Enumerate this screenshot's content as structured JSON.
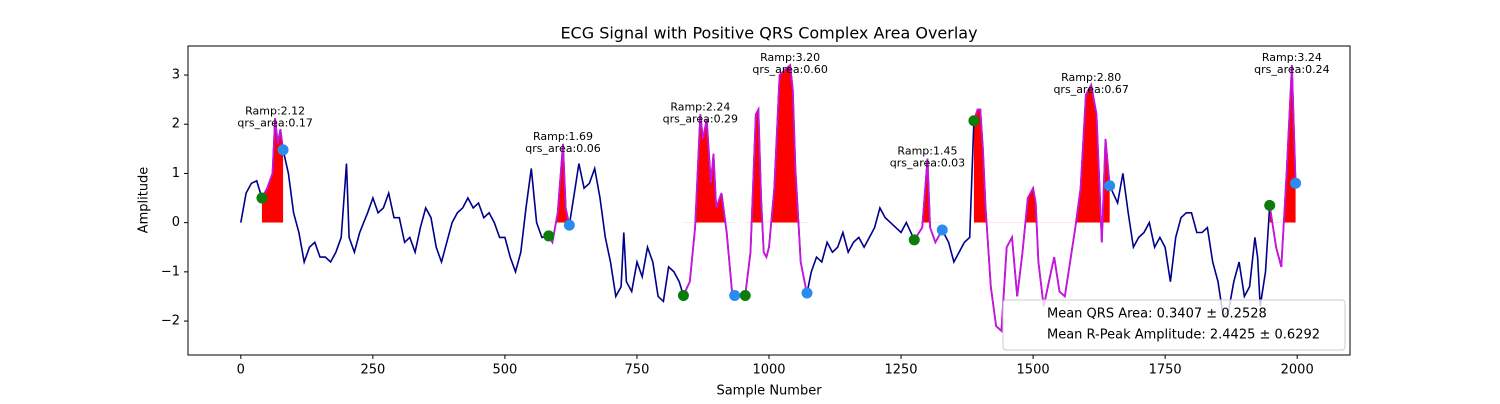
{
  "chart_data": {
    "type": "ecg",
    "title": "ECG Signal with Positive QRS Complex Area Overlay",
    "x_label": "Sample Number",
    "y_label": "Amplitude",
    "xlim": [
      -100,
      2100
    ],
    "ylim": [
      -2.69,
      3.59
    ],
    "xticks": [
      0,
      250,
      500,
      750,
      1000,
      1250,
      1500,
      1750,
      2000
    ],
    "yticks": [
      {
        "value": -2,
        "label": "−2"
      },
      {
        "value": -1,
        "label": "−1"
      },
      0,
      1,
      2,
      3
    ],
    "signal": {
      "color": "#00008b",
      "x": [
        0,
        10,
        20,
        30,
        40,
        50,
        60,
        65,
        70,
        75,
        80,
        90,
        100,
        110,
        120,
        130,
        140,
        150,
        160,
        170,
        180,
        190,
        200,
        205,
        215,
        225,
        240,
        250,
        260,
        270,
        280,
        290,
        300,
        310,
        320,
        330,
        340,
        350,
        360,
        370,
        380,
        390,
        400,
        410,
        420,
        430,
        440,
        450,
        460,
        470,
        480,
        490,
        500,
        510,
        520,
        530,
        540,
        550,
        560,
        570,
        583,
        590,
        600,
        610,
        615,
        622,
        630,
        640,
        650,
        660,
        670,
        680,
        690,
        700,
        710,
        720,
        725,
        730,
        740,
        750,
        760,
        770,
        780,
        790,
        800,
        810,
        820,
        830,
        838,
        850,
        860,
        870,
        875,
        882,
        890,
        895,
        900,
        910,
        920,
        930,
        935,
        945,
        955,
        965,
        975,
        980,
        985,
        990,
        995,
        1000,
        1010,
        1020,
        1030,
        1040,
        1045,
        1050,
        1060,
        1070,
        1072,
        1080,
        1090,
        1100,
        1110,
        1120,
        1130,
        1140,
        1150,
        1160,
        1170,
        1180,
        1190,
        1200,
        1210,
        1220,
        1230,
        1240,
        1250,
        1260,
        1275,
        1290,
        1300,
        1305,
        1315,
        1328,
        1340,
        1350,
        1360,
        1370,
        1380,
        1388,
        1395,
        1400,
        1405,
        1410,
        1420,
        1430,
        1440,
        1450,
        1460,
        1470,
        1480,
        1490,
        1500,
        1505,
        1510,
        1520,
        1530,
        1540,
        1550,
        1560,
        1570,
        1580,
        1590,
        1600,
        1610,
        1620,
        1630,
        1637,
        1645,
        1660,
        1670,
        1680,
        1690,
        1700,
        1710,
        1720,
        1730,
        1740,
        1750,
        1760,
        1770,
        1780,
        1790,
        1800,
        1810,
        1820,
        1830,
        1840,
        1850,
        1860,
        1870,
        1880,
        1890,
        1900,
        1910,
        1920,
        1925,
        1930,
        1940,
        1948,
        1960,
        1970,
        1980,
        1990,
        1997
      ],
      "values": [
        0,
        0.6,
        0.8,
        0.85,
        0.5,
        0.7,
        1.0,
        2.12,
        1.6,
        1.9,
        1.48,
        1.0,
        0.2,
        -0.2,
        -0.8,
        -0.5,
        -0.4,
        -0.7,
        -0.7,
        -0.8,
        -0.6,
        -0.3,
        1.2,
        -0.3,
        -0.6,
        -0.2,
        0.2,
        0.5,
        0.2,
        0.3,
        0.6,
        0.1,
        0.1,
        -0.4,
        -0.3,
        -0.6,
        -0.1,
        0.3,
        0.1,
        -0.5,
        -0.8,
        -0.4,
        0,
        0.2,
        0.3,
        0.5,
        0.3,
        0.4,
        0.1,
        0.2,
        0,
        -0.3,
        -0.3,
        -0.7,
        -1.0,
        -0.6,
        0.3,
        1.1,
        0,
        -0.3,
        -0.27,
        -0.4,
        0.2,
        1.6,
        0.3,
        -0.05,
        0.5,
        1.2,
        0.7,
        0.8,
        1.1,
        0.5,
        -0.3,
        -0.8,
        -1.5,
        -1.3,
        -0.2,
        -1.2,
        -1.4,
        -0.8,
        -1.1,
        -0.5,
        -0.8,
        -1.5,
        -1.6,
        -0.9,
        -1.0,
        -1.2,
        -1.48,
        -1.2,
        -0.1,
        2.2,
        1.7,
        2.1,
        0.8,
        1.4,
        0.3,
        0.6,
        -0.2,
        -1.4,
        -1.48,
        -1.5,
        -1.48,
        -0.6,
        2.2,
        2.3,
        0.5,
        -0.6,
        -0.7,
        -0.5,
        0.7,
        3.0,
        3.1,
        3.2,
        2.7,
        1.1,
        -0.8,
        -1.35,
        -1.43,
        -1.0,
        -0.7,
        -0.8,
        -0.4,
        -0.6,
        -0.5,
        -0.2,
        -0.6,
        -0.4,
        -0.3,
        -0.5,
        -0.3,
        -0.1,
        0.3,
        0.1,
        0,
        -0.1,
        -0.2,
        0,
        -0.35,
        -0.1,
        1.3,
        -0.1,
        -0.4,
        -0.15,
        -0.4,
        -0.8,
        -0.6,
        -0.4,
        -0.3,
        2.07,
        2.3,
        2.3,
        1.5,
        0.3,
        -1.3,
        -2.1,
        -2.2,
        -0.5,
        -0.3,
        -1.5,
        -0.6,
        0.5,
        0.7,
        0.4,
        -0.8,
        -1.7,
        -1.2,
        -0.7,
        -1.4,
        -1.5,
        -0.8,
        -0.1,
        0.7,
        2.6,
        2.8,
        2.2,
        -0.4,
        1.7,
        0.75,
        0.4,
        1.0,
        0.2,
        -0.5,
        -0.3,
        -0.2,
        0,
        -0.5,
        -0.3,
        -0.5,
        -1.2,
        -0.3,
        0.1,
        0.2,
        0.2,
        -0.2,
        -0.2,
        -0.1,
        -0.8,
        -1.2,
        -1.9,
        -1.8,
        -1.2,
        -0.8,
        -1.5,
        -1.3,
        -0.3,
        -0.7,
        -1.7,
        -1.0,
        0.35,
        -0.5,
        -0.9,
        1.0,
        3.2,
        0.8
      ]
    },
    "qrs_color": "#c814dc",
    "area_color": "#ff0000",
    "onset_color": "#0a7d0a",
    "offset_color": "#2a8cf0",
    "beats": [
      {
        "onset": {
          "x": 40,
          "y": 0.5
        },
        "offset": {
          "x": 80,
          "y": 1.48
        },
        "annotation": [
          "Ramp:2.12",
          "qrs_area:0.17"
        ]
      },
      {
        "onset": {
          "x": 583,
          "y": -0.27
        },
        "offset": {
          "x": 622,
          "y": -0.05
        },
        "annotation": [
          "Ramp:1.69",
          "qrs_area:0.06"
        ]
      },
      {
        "onset": {
          "x": 838,
          "y": -1.48
        },
        "offset": {
          "x": 935,
          "y": -1.48
        },
        "annotation": [
          "Ramp:2.24",
          "qrs_area:0.29"
        ]
      },
      {
        "onset": {
          "x": 955,
          "y": -1.48
        },
        "offset": {
          "x": 1072,
          "y": -1.43
        },
        "annotation": [
          "Ramp:3.20",
          "qrs_area:0.60"
        ]
      },
      {
        "onset": {
          "x": 1275,
          "y": -0.35
        },
        "offset": {
          "x": 1328,
          "y": -0.15
        },
        "annotation": [
          "Ramp:1.45",
          "qrs_area:0.03"
        ]
      },
      {
        "onset": {
          "x": 1388,
          "y": 2.07
        },
        "offset": {
          "x": 1645,
          "y": 0.75
        },
        "annotation": [
          "Ramp:2.80",
          "qrs_area:0.67"
        ]
      },
      {
        "onset": {
          "x": 1948,
          "y": 0.35
        },
        "offset": {
          "x": 1997,
          "y": 0.8
        },
        "annotation": [
          "Ramp:3.24",
          "qrs_area:0.24"
        ]
      }
    ],
    "legend_entries": [
      "Mean QRS Area: 0.3407 ± 0.2528",
      "Mean R-Peak Amplitude: 2.4425 ± 0.6292"
    ],
    "legend_loc": "lower right"
  }
}
